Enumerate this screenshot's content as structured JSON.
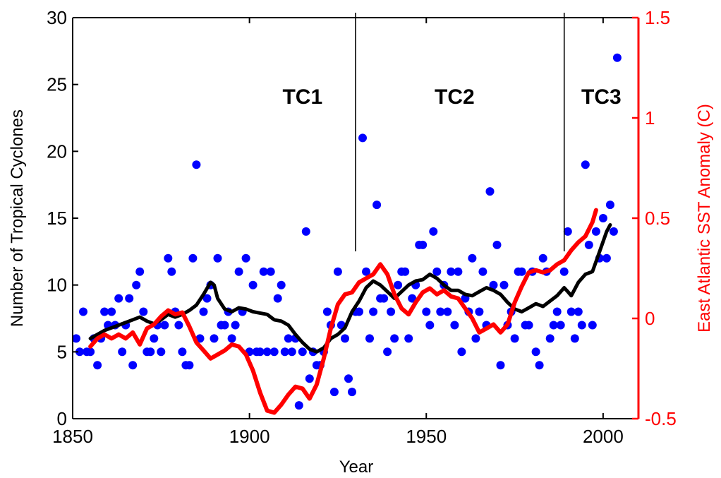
{
  "chart_data": {
    "type": "scatter",
    "xlabel": "Year",
    "ylabel": "Number of Tropical Cyclones",
    "y2label": "East Atlantic SST Anomaly (C)",
    "xlim": [
      1850,
      2010
    ],
    "ylim": [
      0,
      30
    ],
    "y2lim": [
      -0.5,
      1.5
    ],
    "xticks": [
      1850,
      1900,
      1950,
      2000
    ],
    "yticks": [
      0,
      5,
      10,
      15,
      20,
      25,
      30
    ],
    "y2ticks": [
      "-0.5",
      "0",
      "0.5",
      "1",
      "1.5"
    ],
    "grid": false,
    "legend": "none",
    "colors": {
      "points": "#0000ff",
      "running_mean": "#000000",
      "sst": "#ff0000",
      "right_axis": "#ff0000",
      "axes": "#000000"
    },
    "period_dividers": [
      1930,
      1989
    ],
    "period_labels": [
      {
        "text": "TC1",
        "x": 1915
      },
      {
        "text": "TC2",
        "x": 1958
      },
      {
        "text": "TC3",
        "x": 1999.5
      }
    ],
    "series": [
      {
        "kind": "scatter",
        "axis": "left",
        "points": [
          [
            1851,
            6
          ],
          [
            1852,
            5
          ],
          [
            1853,
            8
          ],
          [
            1854,
            5
          ],
          [
            1855,
            5
          ],
          [
            1856,
            6
          ],
          [
            1857,
            4
          ],
          [
            1858,
            6
          ],
          [
            1859,
            8
          ],
          [
            1860,
            7
          ],
          [
            1861,
            8
          ],
          [
            1862,
            7
          ],
          [
            1863,
            9
          ],
          [
            1864,
            5
          ],
          [
            1865,
            7
          ],
          [
            1866,
            9
          ],
          [
            1867,
            4
          ],
          [
            1868,
            10
          ],
          [
            1869,
            11
          ],
          [
            1870,
            8
          ],
          [
            1871,
            5
          ],
          [
            1872,
            5
          ],
          [
            1873,
            6
          ],
          [
            1874,
            7
          ],
          [
            1875,
            5
          ],
          [
            1876,
            7
          ],
          [
            1877,
            12
          ],
          [
            1878,
            11
          ],
          [
            1879,
            8
          ],
          [
            1880,
            7
          ],
          [
            1881,
            5
          ],
          [
            1882,
            4
          ],
          [
            1883,
            4
          ],
          [
            1884,
            12
          ],
          [
            1885,
            19
          ],
          [
            1886,
            6
          ],
          [
            1887,
            8
          ],
          [
            1888,
            9
          ],
          [
            1889,
            10
          ],
          [
            1890,
            6
          ],
          [
            1891,
            12
          ],
          [
            1892,
            7
          ],
          [
            1893,
            7
          ],
          [
            1894,
            8
          ],
          [
            1895,
            6
          ],
          [
            1896,
            7
          ],
          [
            1897,
            11
          ],
          [
            1898,
            8
          ],
          [
            1899,
            12
          ],
          [
            1900,
            5
          ],
          [
            1901,
            10
          ],
          [
            1902,
            5
          ],
          [
            1903,
            5
          ],
          [
            1904,
            11
          ],
          [
            1905,
            5
          ],
          [
            1906,
            11
          ],
          [
            1907,
            5
          ],
          [
            1908,
            9
          ],
          [
            1909,
            10
          ],
          [
            1910,
            5
          ],
          [
            1911,
            6
          ],
          [
            1912,
            5
          ],
          [
            1913,
            6
          ],
          [
            1914,
            1
          ],
          [
            1915,
            5
          ],
          [
            1916,
            14
          ],
          [
            1917,
            3
          ],
          [
            1918,
            5
          ],
          [
            1919,
            4
          ],
          [
            1920,
            4
          ],
          [
            1921,
            5
          ],
          [
            1922,
            8
          ],
          [
            1923,
            7
          ],
          [
            1924,
            2
          ],
          [
            1925,
            11
          ],
          [
            1926,
            7
          ],
          [
            1927,
            6
          ],
          [
            1928,
            3
          ],
          [
            1929,
            2
          ],
          [
            1930,
            8
          ],
          [
            1931,
            8
          ],
          [
            1932,
            21
          ],
          [
            1933,
            11
          ],
          [
            1934,
            6
          ],
          [
            1935,
            8
          ],
          [
            1936,
            16
          ],
          [
            1937,
            9
          ],
          [
            1938,
            9
          ],
          [
            1939,
            5
          ],
          [
            1940,
            8
          ],
          [
            1941,
            6
          ],
          [
            1942,
            10
          ],
          [
            1943,
            11
          ],
          [
            1944,
            11
          ],
          [
            1945,
            6
          ],
          [
            1946,
            9
          ],
          [
            1947,
            10
          ],
          [
            1948,
            13
          ],
          [
            1949,
            13
          ],
          [
            1950,
            8
          ],
          [
            1951,
            7
          ],
          [
            1952,
            14
          ],
          [
            1953,
            11
          ],
          [
            1954,
            8
          ],
          [
            1955,
            10
          ],
          [
            1956,
            8
          ],
          [
            1957,
            11
          ],
          [
            1958,
            7
          ],
          [
            1959,
            11
          ],
          [
            1960,
            5
          ],
          [
            1961,
            9
          ],
          [
            1962,
            8
          ],
          [
            1963,
            12
          ],
          [
            1964,
            6
          ],
          [
            1965,
            8
          ],
          [
            1966,
            11
          ],
          [
            1967,
            7
          ],
          [
            1968,
            17
          ],
          [
            1969,
            10
          ],
          [
            1970,
            13
          ],
          [
            1971,
            4
          ],
          [
            1972,
            10
          ],
          [
            1973,
            7
          ],
          [
            1974,
            8
          ],
          [
            1975,
            6
          ],
          [
            1976,
            11
          ],
          [
            1977,
            11
          ],
          [
            1978,
            7
          ],
          [
            1979,
            7
          ],
          [
            1980,
            11
          ],
          [
            1981,
            5
          ],
          [
            1982,
            4
          ],
          [
            1983,
            12
          ],
          [
            1984,
            11
          ],
          [
            1985,
            6
          ],
          [
            1986,
            7
          ],
          [
            1987,
            8
          ],
          [
            1988,
            7
          ],
          [
            1989,
            11
          ],
          [
            1990,
            14
          ],
          [
            1991,
            8
          ],
          [
            1992,
            6
          ],
          [
            1993,
            8
          ],
          [
            1994,
            7
          ],
          [
            1995,
            19
          ],
          [
            1996,
            13
          ],
          [
            1997,
            7
          ],
          [
            1998,
            14
          ],
          [
            1999,
            12
          ],
          [
            2000,
            15
          ],
          [
            2001,
            12
          ],
          [
            2002,
            16
          ],
          [
            2003,
            14
          ],
          [
            2004,
            27
          ]
        ]
      },
      {
        "kind": "line",
        "axis": "left",
        "points": [
          [
            1855,
            6.0
          ],
          [
            1857,
            6.3
          ],
          [
            1859,
            6.6
          ],
          [
            1861,
            6.8
          ],
          [
            1863,
            7.0
          ],
          [
            1865,
            7.2
          ],
          [
            1867,
            7.4
          ],
          [
            1869,
            7.6
          ],
          [
            1871,
            7.3
          ],
          [
            1873,
            7.1
          ],
          [
            1875,
            7.4
          ],
          [
            1877,
            7.8
          ],
          [
            1879,
            7.6
          ],
          [
            1881,
            7.8
          ],
          [
            1883,
            8.1
          ],
          [
            1885,
            8.5
          ],
          [
            1887,
            9.3
          ],
          [
            1889,
            10.2
          ],
          [
            1890,
            10.0
          ],
          [
            1891,
            9.0
          ],
          [
            1893,
            8.2
          ],
          [
            1895,
            8.0
          ],
          [
            1897,
            8.3
          ],
          [
            1899,
            8.2
          ],
          [
            1901,
            8.0
          ],
          [
            1903,
            7.9
          ],
          [
            1905,
            7.8
          ],
          [
            1907,
            7.4
          ],
          [
            1909,
            7.3
          ],
          [
            1911,
            7.0
          ],
          [
            1913,
            6.3
          ],
          [
            1915,
            5.7
          ],
          [
            1917,
            5.2
          ],
          [
            1919,
            5.0
          ],
          [
            1921,
            5.3
          ],
          [
            1923,
            6.0
          ],
          [
            1925,
            6.3
          ],
          [
            1927,
            6.8
          ],
          [
            1929,
            8.0
          ],
          [
            1931,
            8.8
          ],
          [
            1933,
            9.8
          ],
          [
            1935,
            10.3
          ],
          [
            1937,
            10.0
          ],
          [
            1939,
            9.5
          ],
          [
            1941,
            9.0
          ],
          [
            1943,
            9.5
          ],
          [
            1945,
            10.0
          ],
          [
            1947,
            10.3
          ],
          [
            1949,
            10.4
          ],
          [
            1951,
            10.8
          ],
          [
            1953,
            10.5
          ],
          [
            1955,
            10.0
          ],
          [
            1957,
            9.6
          ],
          [
            1959,
            9.6
          ],
          [
            1961,
            9.3
          ],
          [
            1963,
            9.2
          ],
          [
            1965,
            9.5
          ],
          [
            1967,
            9.8
          ],
          [
            1969,
            9.6
          ],
          [
            1971,
            9.3
          ],
          [
            1973,
            8.7
          ],
          [
            1975,
            8.2
          ],
          [
            1977,
            8.0
          ],
          [
            1979,
            8.3
          ],
          [
            1981,
            8.6
          ],
          [
            1983,
            8.4
          ],
          [
            1985,
            8.8
          ],
          [
            1987,
            9.2
          ],
          [
            1989,
            9.8
          ],
          [
            1990,
            9.5
          ],
          [
            1991,
            9.2
          ],
          [
            1993,
            10.2
          ],
          [
            1995,
            10.8
          ],
          [
            1997,
            11.0
          ],
          [
            1999,
            12.5
          ],
          [
            2001,
            14.0
          ],
          [
            2002,
            14.5
          ]
        ]
      },
      {
        "kind": "line",
        "axis": "right",
        "points": [
          [
            1855,
            -0.14
          ],
          [
            1857,
            -0.1
          ],
          [
            1859,
            -0.08
          ],
          [
            1861,
            -0.1
          ],
          [
            1863,
            -0.08
          ],
          [
            1865,
            -0.1
          ],
          [
            1867,
            -0.07
          ],
          [
            1869,
            -0.13
          ],
          [
            1871,
            -0.05
          ],
          [
            1873,
            -0.03
          ],
          [
            1875,
            0.01
          ],
          [
            1877,
            0.04
          ],
          [
            1879,
            0.02
          ],
          [
            1881,
            0.03
          ],
          [
            1883,
            -0.04
          ],
          [
            1885,
            -0.12
          ],
          [
            1887,
            -0.16
          ],
          [
            1889,
            -0.2
          ],
          [
            1891,
            -0.18
          ],
          [
            1893,
            -0.16
          ],
          [
            1895,
            -0.13
          ],
          [
            1897,
            -0.14
          ],
          [
            1899,
            -0.18
          ],
          [
            1901,
            -0.26
          ],
          [
            1903,
            -0.37
          ],
          [
            1905,
            -0.46
          ],
          [
            1907,
            -0.47
          ],
          [
            1909,
            -0.43
          ],
          [
            1911,
            -0.38
          ],
          [
            1913,
            -0.34
          ],
          [
            1915,
            -0.35
          ],
          [
            1917,
            -0.4
          ],
          [
            1919,
            -0.33
          ],
          [
            1921,
            -0.2
          ],
          [
            1923,
            -0.05
          ],
          [
            1925,
            0.07
          ],
          [
            1927,
            0.12
          ],
          [
            1929,
            0.13
          ],
          [
            1931,
            0.18
          ],
          [
            1933,
            0.2
          ],
          [
            1935,
            0.22
          ],
          [
            1937,
            0.27
          ],
          [
            1939,
            0.22
          ],
          [
            1941,
            0.12
          ],
          [
            1943,
            0.05
          ],
          [
            1945,
            0.02
          ],
          [
            1947,
            0.08
          ],
          [
            1949,
            0.13
          ],
          [
            1951,
            0.15
          ],
          [
            1953,
            0.12
          ],
          [
            1955,
            0.14
          ],
          [
            1957,
            0.11
          ],
          [
            1959,
            0.1
          ],
          [
            1961,
            0.05
          ],
          [
            1963,
            0.0
          ],
          [
            1965,
            -0.07
          ],
          [
            1967,
            -0.05
          ],
          [
            1969,
            -0.03
          ],
          [
            1971,
            -0.07
          ],
          [
            1973,
            -0.03
          ],
          [
            1975,
            0.08
          ],
          [
            1977,
            0.16
          ],
          [
            1979,
            0.23
          ],
          [
            1981,
            0.24
          ],
          [
            1983,
            0.23
          ],
          [
            1985,
            0.24
          ],
          [
            1987,
            0.27
          ],
          [
            1989,
            0.29
          ],
          [
            1991,
            0.34
          ],
          [
            1993,
            0.38
          ],
          [
            1995,
            0.41
          ],
          [
            1997,
            0.48
          ],
          [
            1998,
            0.54
          ]
        ]
      }
    ]
  }
}
